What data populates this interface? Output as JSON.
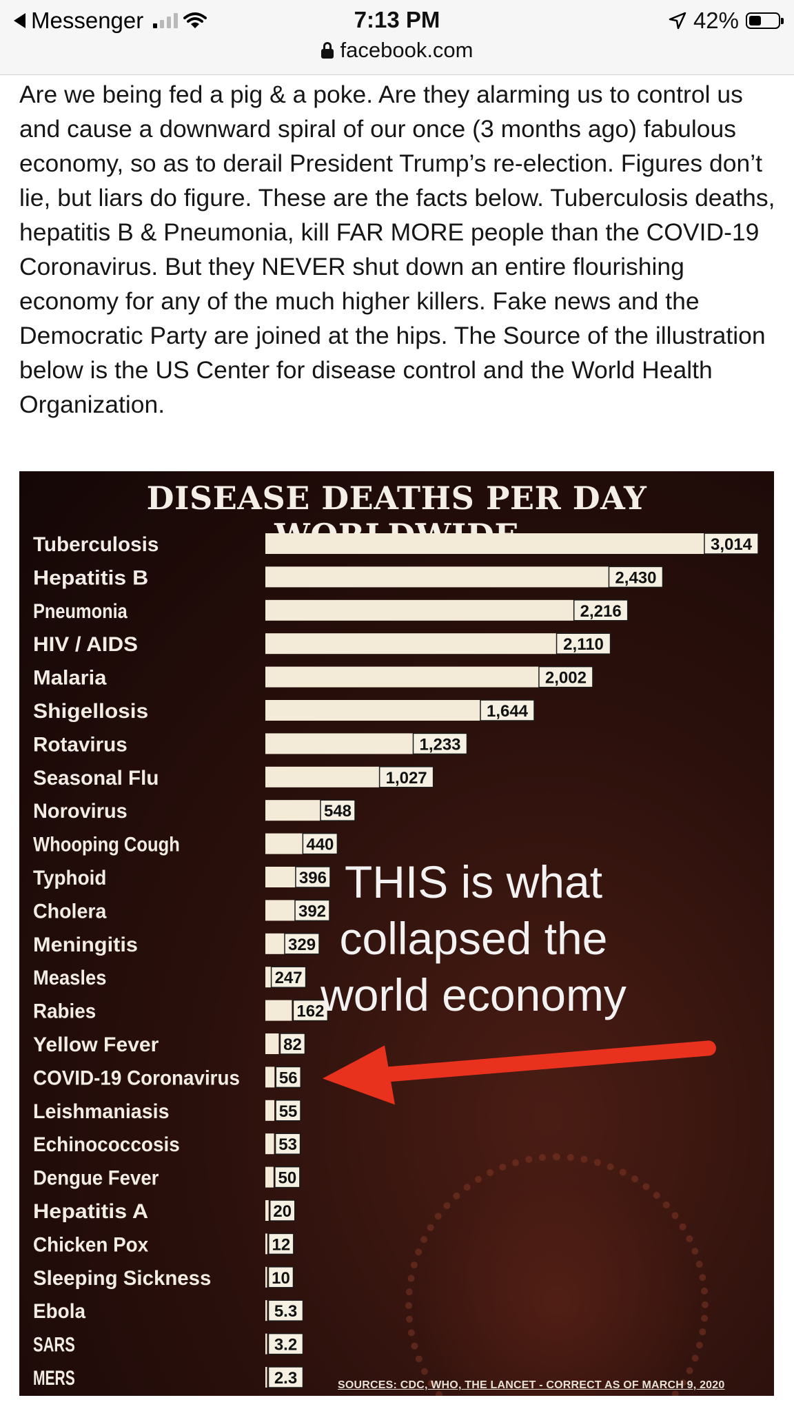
{
  "status_bar": {
    "back_app": "Messenger",
    "time": "7:13 PM",
    "battery": "42%",
    "battery_level": 0.42,
    "url": "facebook.com",
    "icons": [
      "back-triangle-icon",
      "signal-bars-icon",
      "wifi-icon",
      "location-arrow-icon",
      "battery-icon",
      "lock-icon"
    ]
  },
  "post": {
    "text": "Are we being fed a pig & a poke. Are they alarming us to control us and cause a downward spiral of our once (3 months ago) fabulous economy, so as to derail President Trump’s re-election. Figures don’t lie, but liars do figure. These are the facts below. Tuberculosis deaths, hepatitis B & Pneumonia, kill FAR MORE people than the COVID-19 Coronavirus. But they NEVER shut down an entire flourishing economy for any of the much higher killers. Fake news and the Democratic Party are joined at the hips. The Source of the illustration below is the US Center for disease control and the World Health Organization."
  },
  "infographic": {
    "overlay_text": "THIS is what collapsed the world economy",
    "sources": "SOURCES: CDC, WHO, THE LANCET - CORRECT AS OF MARCH 9, 2020",
    "colors": {
      "bar": "#f3ead8",
      "arrow": "#e8321e",
      "background": "#2b100c"
    }
  },
  "chart_data": {
    "type": "bar",
    "orientation": "horizontal",
    "title": "DISEASE DEATHS PER DAY WORLDWIDE",
    "categories": [
      "Tuberculosis",
      "Hepatitis B",
      "Pneumonia",
      "HIV / AIDS",
      "Malaria",
      "Shigellosis",
      "Rotavirus",
      "Seasonal Flu",
      "Norovirus",
      "Whooping Cough",
      "Typhoid",
      "Cholera",
      "Meningitis",
      "Measles",
      "Rabies",
      "Yellow Fever",
      "COVID-19 Coronavirus",
      "Leishmaniasis",
      "Echinococcosis",
      "Dengue Fever",
      "Hepatitis A",
      "Chicken Pox",
      "Sleeping Sickness",
      "Ebola",
      "SARS",
      "MERS"
    ],
    "values": [
      3014,
      2430,
      2216,
      2110,
      2002,
      1644,
      1233,
      1027,
      548,
      440,
      396,
      392,
      329,
      247,
      162,
      82,
      56,
      55,
      53,
      50,
      20,
      12,
      10,
      5.3,
      3.2,
      2.3
    ],
    "value_labels": [
      "3,014",
      "2,430",
      "2,216",
      "2,110",
      "2,002",
      "1,644",
      "1,233",
      "1,027",
      "548",
      "440",
      "396",
      "392",
      "329",
      "247",
      "162",
      "82",
      "56",
      "55",
      "53",
      "50",
      "20",
      "12",
      "10",
      "5.3",
      "3.2",
      "2.3"
    ],
    "xlim": [
      0,
      3014
    ],
    "grid": false,
    "legend": "none"
  }
}
